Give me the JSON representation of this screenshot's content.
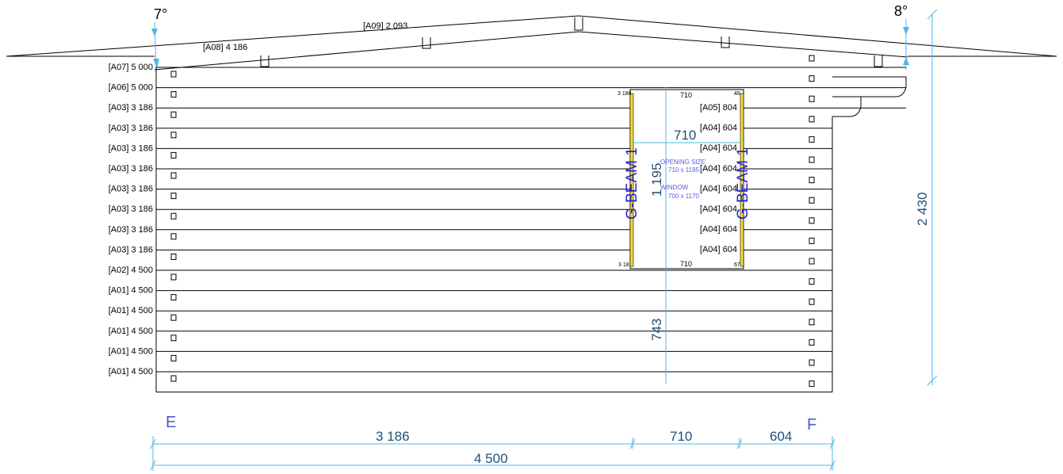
{
  "angles": {
    "left": "7°",
    "right": "8°"
  },
  "roof_labels": {
    "a09": "[A09] 2 093",
    "a08": "[A08] 4 186"
  },
  "logs_left": [
    "[A07] 5 000",
    "[A06] 5 000",
    "[A03] 3 186",
    "[A03] 3 186",
    "[A03] 3 186",
    "[A03] 3 186",
    "[A03] 3 186",
    "[A03] 3 186",
    "[A03] 3 186",
    "[A03] 3 186",
    "[A02] 4 500",
    "[A01] 4 500",
    "[A01] 4 500",
    "[A01] 4 500",
    "[A01] 4 500",
    "[A01] 4 500"
  ],
  "logs_right": [
    "[A05] 804",
    "[A04] 604",
    "[A04] 604",
    "[A04] 604",
    "[A04] 604",
    "[A04] 604",
    "[A04] 604",
    "[A04] 604"
  ],
  "window": {
    "top_width": "710",
    "bottom_width": "710",
    "top_left_small": "3 186",
    "top_right_small": "48",
    "bottom_left_small": "3 18",
    "bottom_right_small": "67",
    "inner_width_dim": "710",
    "height_dim": "1 195",
    "sill_dim": "743",
    "opening_label": "OPENING SIZE",
    "opening_size": "710 x 1195",
    "window_label": "WINDOW",
    "window_size": "700 x 1170",
    "beam_left": "G-BEAM 1",
    "beam_right": "G-BEAM 1"
  },
  "total_height": "2 430",
  "corners": {
    "left": "E",
    "right": "F"
  },
  "bottom_dims": {
    "seg1": "3 186",
    "seg2": "710",
    "seg3": "604",
    "total": "4 500"
  }
}
